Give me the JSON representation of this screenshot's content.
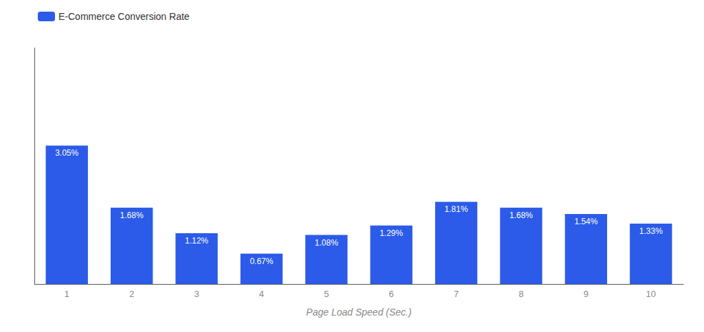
{
  "chart_data": {
    "type": "bar",
    "xlabel": "Page Load Speed (Sec.)",
    "categories": [
      1,
      2,
      3,
      4,
      5,
      6,
      7,
      8,
      9,
      10
    ],
    "series": [
      {
        "name": "E-Commerce Conversion Rate",
        "color": "#2B5BE8",
        "values": [
          3.05,
          1.68,
          1.12,
          0.67,
          1.08,
          1.29,
          1.81,
          1.68,
          1.54,
          1.33
        ],
        "value_labels": [
          "3.05%",
          "1.68%",
          "1.12%",
          "0.67%",
          "1.08%",
          "1.29%",
          "1.81%",
          "1.68%",
          "1.54%",
          "1.33%"
        ]
      }
    ],
    "ylim": [
      0,
      5.2
    ],
    "data_labels": true,
    "tick_labels": "x",
    "grid": false,
    "legend": "upper left"
  }
}
